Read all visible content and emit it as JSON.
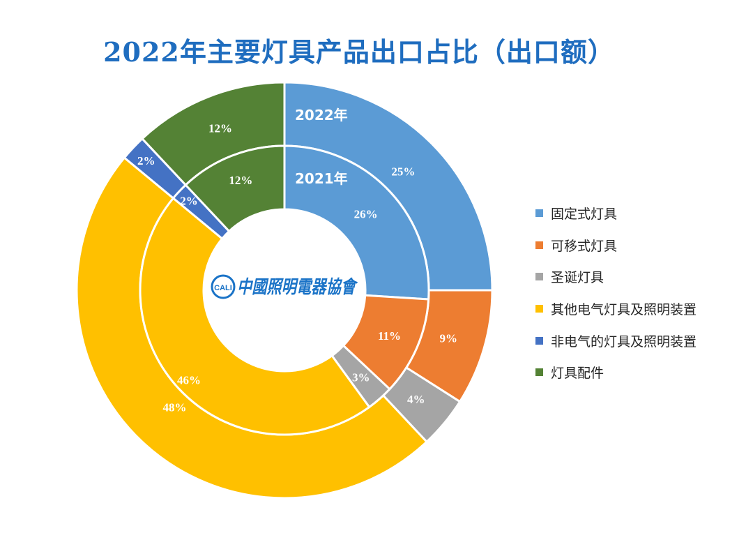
{
  "chart_data": {
    "type": "pie",
    "title": "2022年主要灯具产品出口占比（出口额）",
    "categories": [
      "固定式灯具",
      "可移式灯具",
      "圣诞灯具",
      "其他电气灯具及照明装置",
      "非电气的灯具及照明装置",
      "灯具配件"
    ],
    "colors": [
      "#5b9bd5",
      "#ed7d31",
      "#a5a5a5",
      "#ffc000",
      "#4472c4",
      "#548235"
    ],
    "series": [
      {
        "name": "2022年",
        "values": [
          25,
          9,
          4,
          48,
          2,
          12
        ],
        "labels": [
          "25%",
          "9%",
          "4%",
          "48%",
          "2%",
          "12%"
        ]
      },
      {
        "name": "2021年",
        "values": [
          26,
          11,
          3,
          46,
          2,
          12
        ],
        "labels": [
          "26%",
          "11%",
          "3%",
          "46%",
          "2%",
          "12%"
        ]
      }
    ],
    "legend_position": "right"
  },
  "logo": {
    "text": "中國照明電器協會",
    "mark": "CALI"
  }
}
